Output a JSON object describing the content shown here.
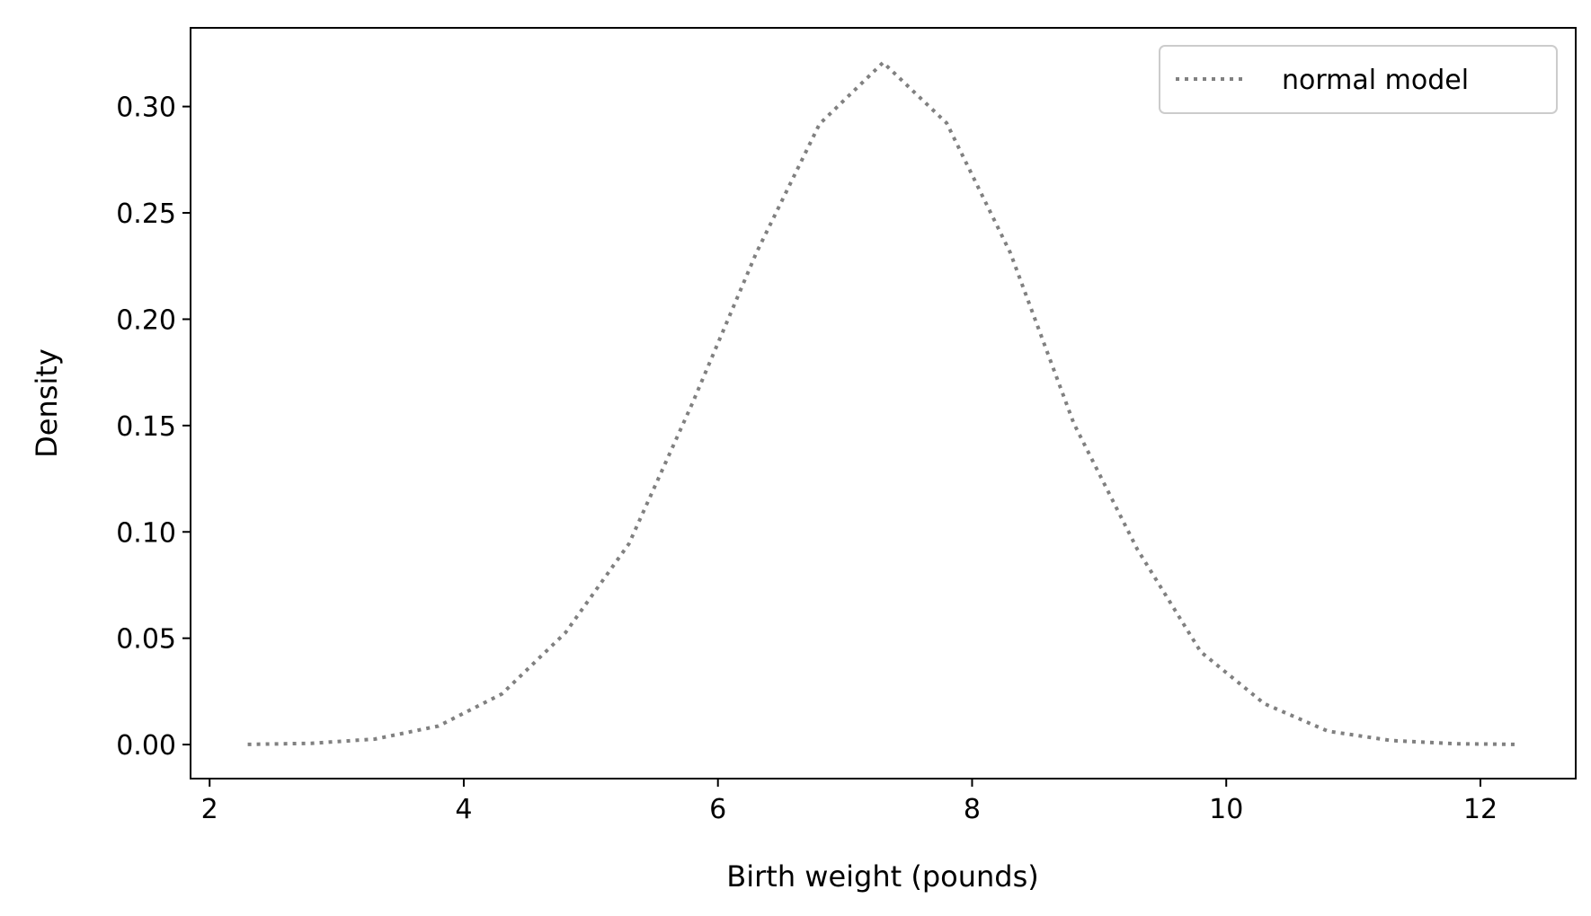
{
  "chart_data": {
    "type": "line",
    "title": "",
    "xlabel": "Birth weight (pounds)",
    "ylabel": "Density",
    "xlim": [
      1.85,
      12.75
    ],
    "ylim": [
      -0.016,
      0.337
    ],
    "x_ticks": [
      2,
      4,
      6,
      8,
      10,
      12
    ],
    "x_tick_labels": [
      "2",
      "4",
      "6",
      "8",
      "10",
      "12"
    ],
    "y_ticks": [
      0.0,
      0.05,
      0.1,
      0.15,
      0.2,
      0.25,
      0.3
    ],
    "y_tick_labels": [
      "0.00",
      "0.05",
      "0.10",
      "0.15",
      "0.20",
      "0.25",
      "0.30"
    ],
    "grid": false,
    "legend_position": "top-right",
    "series": [
      {
        "name": "normal model",
        "color": "#808080",
        "line_style": "dotted",
        "x": [
          2.3,
          2.8,
          3.3,
          3.8,
          4.3,
          4.8,
          5.3,
          5.8,
          6.3,
          6.8,
          7.3,
          7.8,
          8.3,
          8.8,
          9.3,
          9.8,
          10.3,
          10.8,
          11.3,
          11.8,
          12.3
        ],
        "y": [
          0.0001,
          0.0006,
          0.0026,
          0.0087,
          0.0238,
          0.0526,
          0.0944,
          0.1606,
          0.2309,
          0.2918,
          0.3207,
          0.2922,
          0.2313,
          0.151,
          0.0918,
          0.0436,
          0.0192,
          0.0063,
          0.0019,
          0.0004,
          0.0001
        ]
      }
    ]
  }
}
